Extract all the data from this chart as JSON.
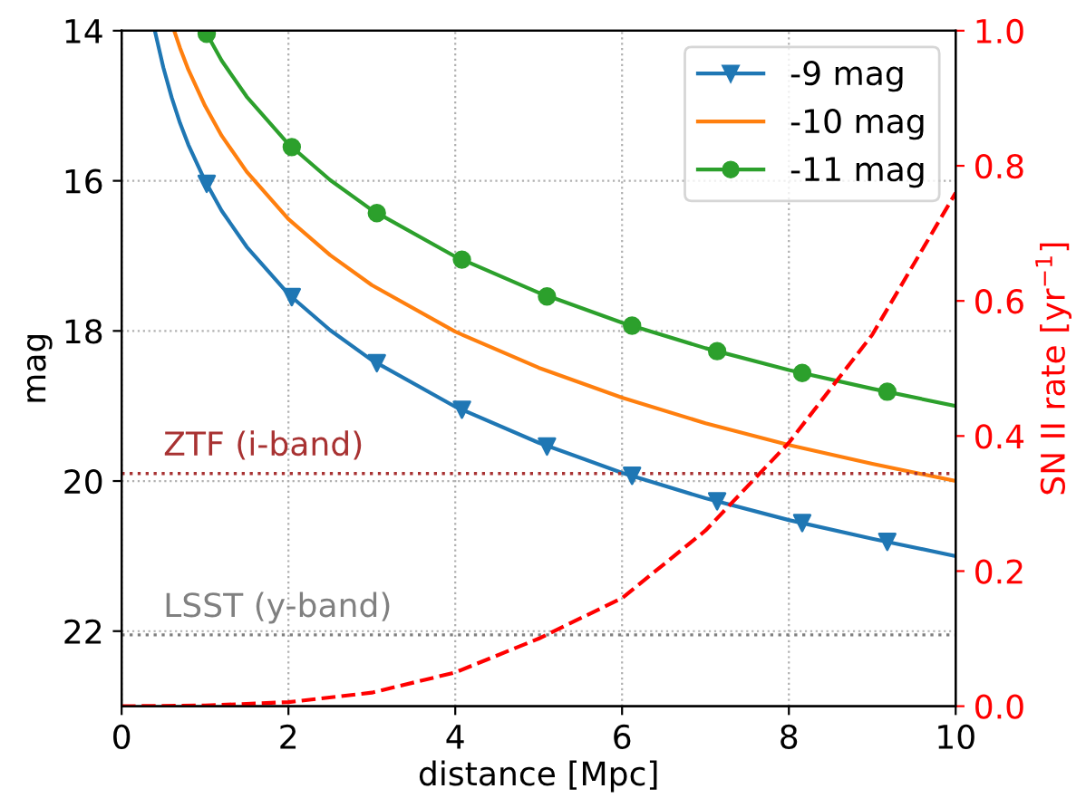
{
  "chart_data": {
    "type": "line",
    "xlabel": "distance [Mpc]",
    "ylabel": "mag",
    "y2label": "SN II rate [yr$^{−1}$]",
    "xlim": [
      0,
      10
    ],
    "xticks": [
      0,
      2,
      4,
      6,
      8,
      10
    ],
    "ylim": [
      23,
      14
    ],
    "yticks": [
      14,
      16,
      18,
      20,
      22
    ],
    "y2lim": [
      0,
      1
    ],
    "y2ticks": [
      {
        "value": 0,
        "label": "0.0"
      },
      {
        "value": 0.2,
        "label": "0.2"
      },
      {
        "value": 0.4,
        "label": "0.4"
      },
      {
        "value": 0.6,
        "label": "0.6"
      },
      {
        "value": 0.8,
        "label": "0.8"
      },
      {
        "value": 1,
        "label": "1.0"
      }
    ],
    "grid": true,
    "legend": "top right",
    "line_style": "solid",
    "series": [
      {
        "name": "-9 mag",
        "color": "#1f77b4",
        "x": [
          0.4,
          0.5,
          0.6,
          0.7,
          0.8,
          1,
          1.2,
          1.5,
          2,
          2.5,
          3,
          4,
          5,
          6,
          7,
          8,
          9,
          10
        ],
        "values": [
          14.01,
          14.49,
          14.89,
          15.23,
          15.52,
          16,
          16.4,
          16.88,
          17.51,
          17.99,
          18.39,
          19.01,
          19.49,
          19.89,
          20.23,
          20.52,
          20.77,
          21
        ]
      },
      {
        "type": "scatter",
        "color": "#1f77b4",
        "marker": "triangle",
        "x": [
          1.02,
          2.04,
          3.06,
          4.08,
          5.1,
          6.12,
          7.14,
          8.16,
          9.18
        ],
        "values": [
          16.04,
          17.55,
          18.43,
          19.05,
          19.54,
          19.93,
          20.27,
          20.56,
          20.81
        ]
      },
      {
        "name": "-10 mag",
        "color": "#ff7f0e",
        "x": [
          0.63,
          0.7,
          0.8,
          1,
          1.2,
          1.5,
          2,
          2.5,
          3,
          4,
          5,
          6,
          7,
          8,
          9,
          10
        ],
        "values": [
          14.0,
          14.23,
          14.52,
          15,
          15.4,
          15.88,
          16.51,
          16.99,
          17.39,
          18.01,
          18.49,
          18.89,
          19.23,
          19.52,
          19.77,
          20
        ]
      },
      {
        "name": "-11 mag",
        "color": "#2ca02c",
        "x": [
          1,
          1.2,
          1.5,
          2,
          2.5,
          3,
          4,
          5,
          6,
          7,
          8,
          9,
          10
        ],
        "values": [
          14,
          14.4,
          14.88,
          15.51,
          15.99,
          16.39,
          17.01,
          17.49,
          17.89,
          18.23,
          18.52,
          18.77,
          19
        ]
      },
      {
        "type": "scatter",
        "color": "#2ca02c",
        "marker": "circle",
        "x": [
          1.02,
          2.04,
          3.06,
          4.08,
          5.1,
          6.12,
          7.14,
          8.16,
          9.18
        ],
        "values": [
          14.04,
          15.55,
          16.43,
          17.05,
          17.54,
          17.93,
          18.27,
          18.56,
          18.81
        ]
      },
      {
        "color": "#ff0000",
        "axis": "y2",
        "line_style": "dashed",
        "x": [
          0,
          1,
          2,
          3,
          4,
          5,
          6,
          7,
          8,
          9,
          10
        ],
        "values": [
          0,
          0.001,
          0.006,
          0.02,
          0.05,
          0.1,
          0.16,
          0.26,
          0.39,
          0.55,
          0.76
        ]
      }
    ],
    "ref_lines": [
      {
        "axis": "y",
        "value": 19.9,
        "label": "ZTF (i-band)",
        "color": "#a83232",
        "line_style": "dotted"
      },
      {
        "axis": "y",
        "value": 22.05,
        "label": "LSST (y-band)",
        "color": "#808080",
        "line_style": "dotted"
      }
    ]
  }
}
